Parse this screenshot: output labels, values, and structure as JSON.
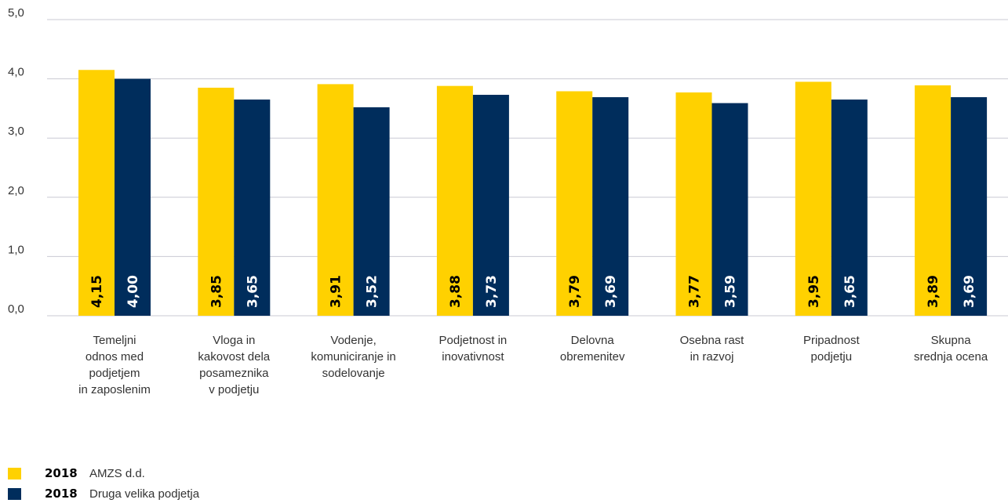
{
  "chart_data": {
    "type": "bar",
    "ylim": [
      0,
      5
    ],
    "yticks": [
      "0,0",
      "1,0",
      "2,0",
      "3,0",
      "4,0",
      "5,0"
    ],
    "grid": true,
    "categories": [
      [
        "Temeljni",
        "odnos med",
        "podjetjem",
        "in zaposlenim"
      ],
      [
        "Vloga in",
        "kakovost dela",
        "posameznika",
        "v podjetju"
      ],
      [
        "Vodenje,",
        "komuniciranje in",
        "sodelovanje"
      ],
      [
        "Podjetnost in",
        "inovativnost"
      ],
      [
        "Delovna",
        "obremenitev"
      ],
      [
        "Osebna rast",
        "in razvoj"
      ],
      [
        "Pripadnost",
        "podjetju"
      ],
      [
        "Skupna",
        "srednja ocena"
      ]
    ],
    "series": [
      {
        "year": "2018",
        "name": "AMZS d.d.",
        "color": "#FFD100",
        "values": [
          4.15,
          3.85,
          3.91,
          3.88,
          3.79,
          3.77,
          3.95,
          3.89
        ],
        "labels": [
          "4,15",
          "3,85",
          "3,91",
          "3,88",
          "3,79",
          "3,77",
          "3,95",
          "3,89"
        ]
      },
      {
        "year": "2018",
        "name": "Druga velika podjetja",
        "color": "#002D5C",
        "values": [
          4.0,
          3.65,
          3.52,
          3.73,
          3.69,
          3.59,
          3.65,
          3.69
        ],
        "labels": [
          "4,00",
          "3,65",
          "3,52",
          "3,73",
          "3,69",
          "3,59",
          "3,65",
          "3,69"
        ]
      }
    ],
    "legend_position": "bottom-left"
  }
}
